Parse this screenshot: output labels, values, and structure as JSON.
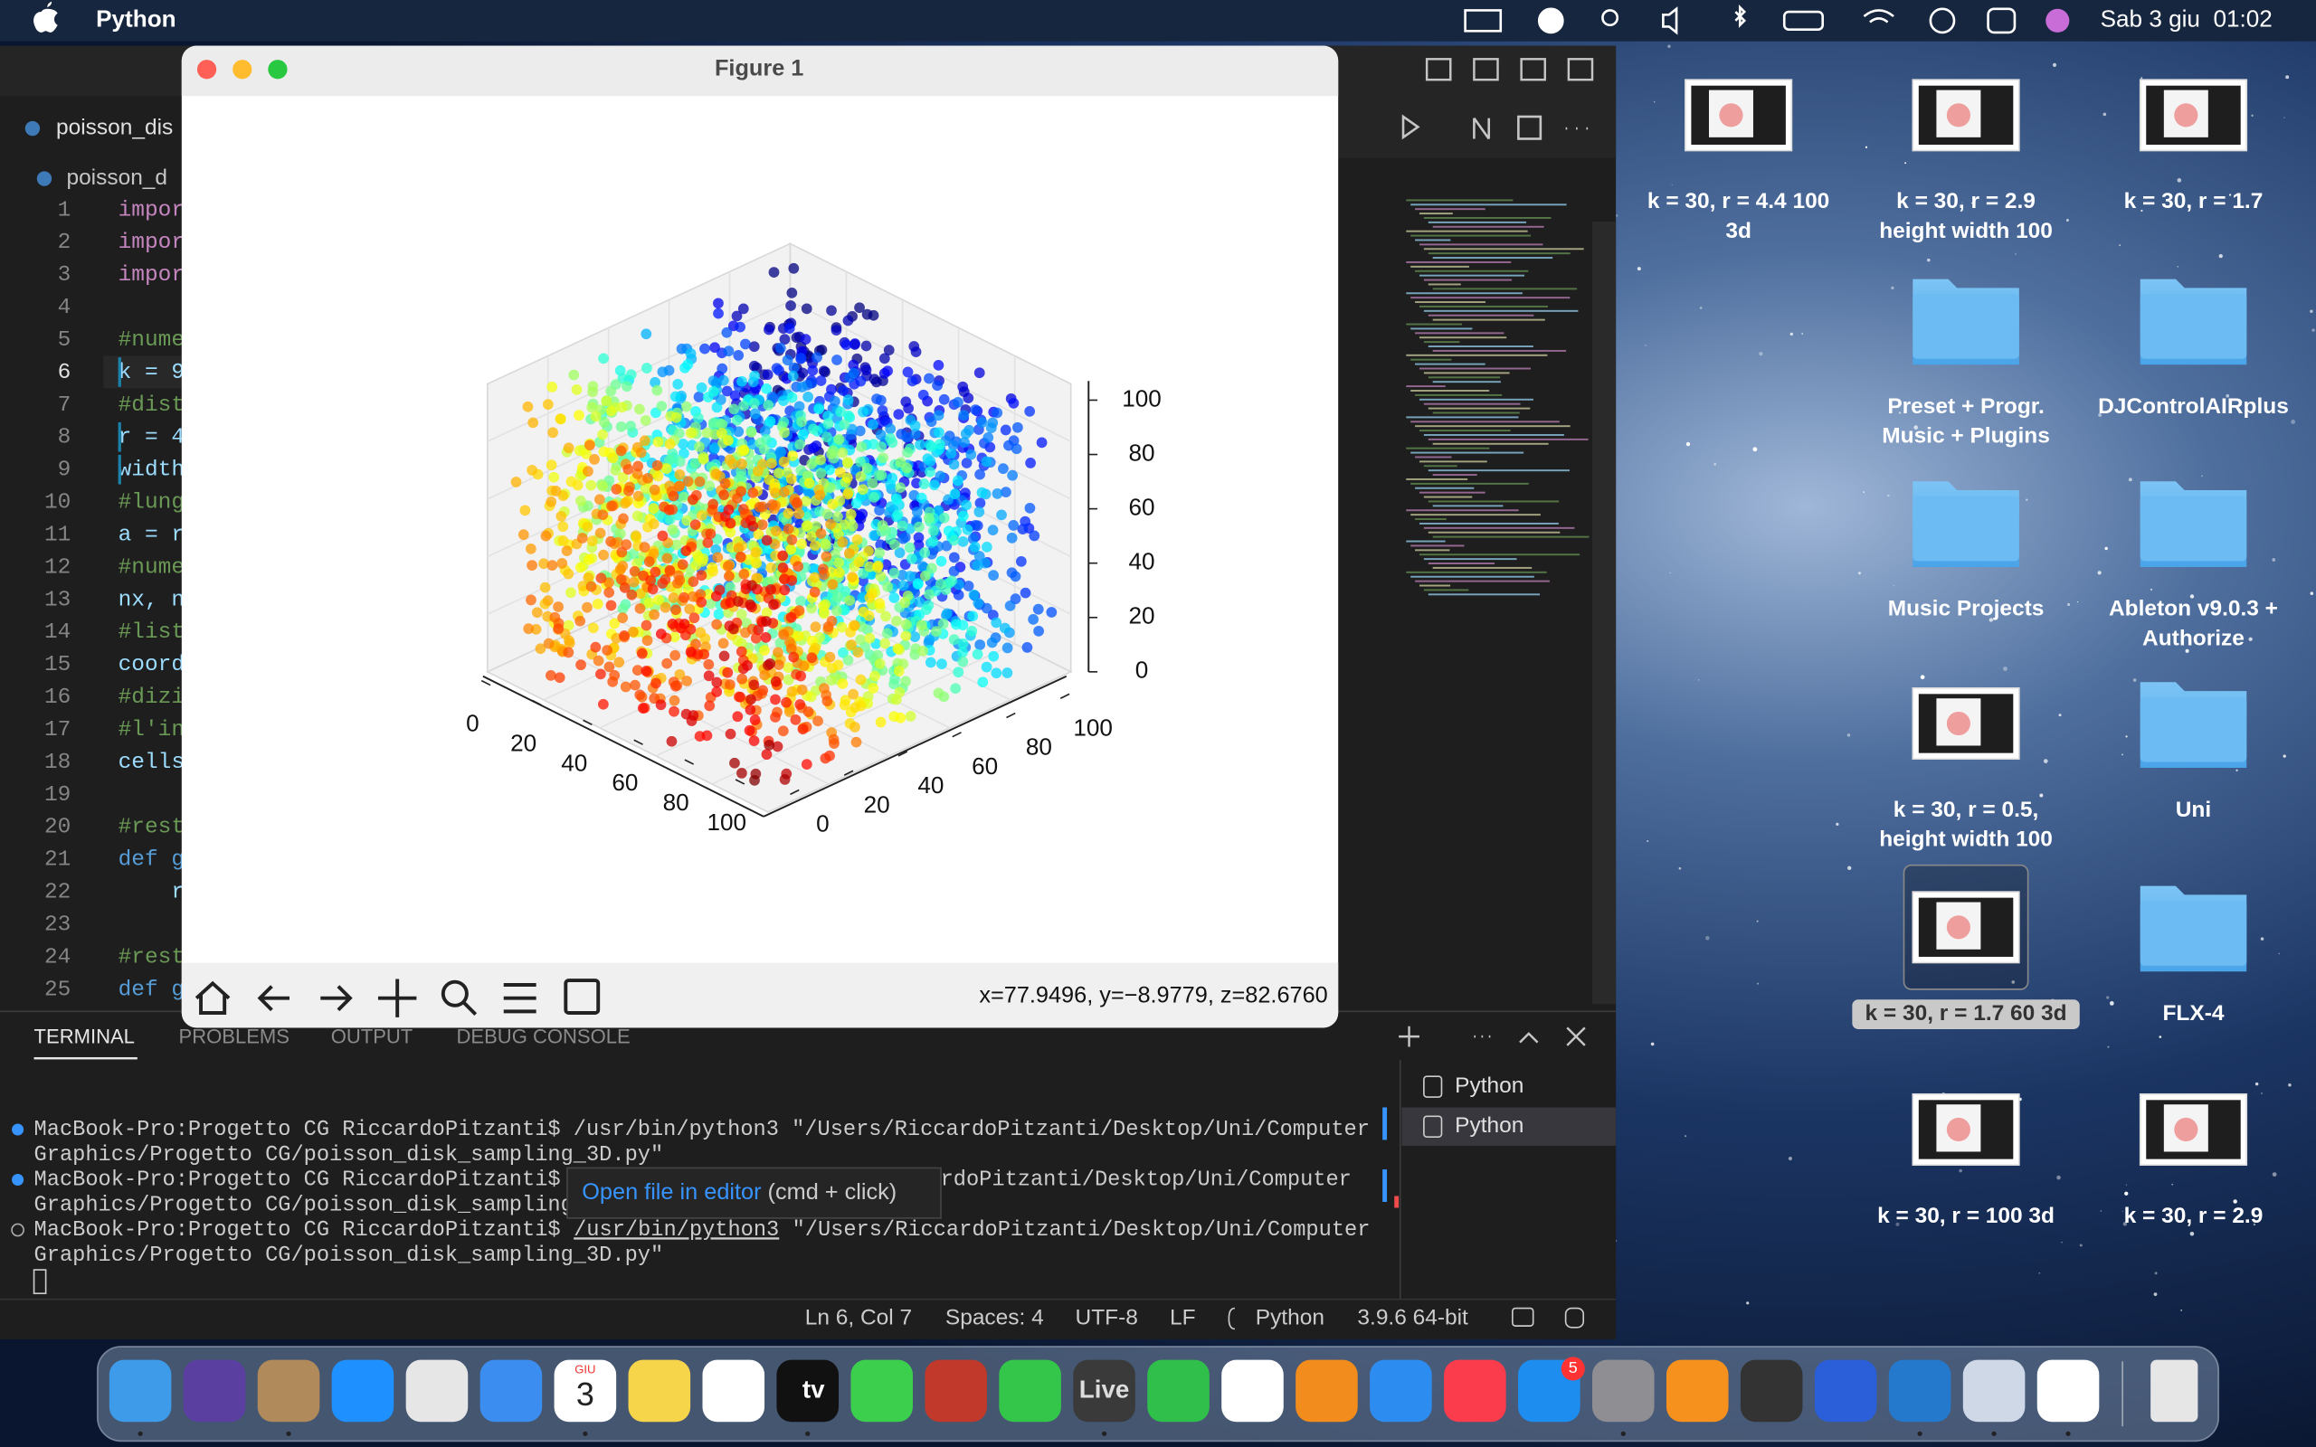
{
  "menubar": {
    "app": "Python",
    "datetime": "Sab 3 giu  01:02"
  },
  "editor": {
    "tab": "poisson_dis",
    "breadcrumb": "poisson_d",
    "lines": [
      {
        "number": 1,
        "code": "impor"
      },
      {
        "number": 2,
        "code": "impor"
      },
      {
        "number": 3,
        "code": "impor"
      },
      {
        "number": 4
      },
      {
        "number": 5,
        "code": "#nume"
      },
      {
        "number": 6,
        "code": "k = 9",
        "active": true
      },
      {
        "number": 7,
        "code": "#dist"
      },
      {
        "number": 8,
        "code": "r = 4"
      },
      {
        "number": 9,
        "code": "width"
      },
      {
        "number": 10,
        "code": "#lung"
      },
      {
        "number": 11,
        "code": "a = r"
      },
      {
        "number": 12,
        "code": "#nume"
      },
      {
        "number": 13,
        "code": "nx, n"
      },
      {
        "number": 14,
        "code": "#list"
      },
      {
        "number": 15,
        "code": "coord"
      },
      {
        "number": 16,
        "code": "#dizi"
      },
      {
        "number": 17,
        "code": "#l'in"
      },
      {
        "number": 18,
        "code": "cells"
      },
      {
        "number": 19
      },
      {
        "number": 20,
        "code": "#rest"
      },
      {
        "number": 21,
        "code": "def g"
      },
      {
        "number": 22,
        "code": "r"
      },
      {
        "number": 23
      },
      {
        "number": 24,
        "code": "#rest"
      },
      {
        "number": 25,
        "code": "def g"
      }
    ]
  },
  "figure": {
    "title": "Figure 1",
    "coordinates": "x=77.9496, y=−8.9779, z=82.6760",
    "x_ticks": [
      0,
      20,
      40,
      60,
      80,
      100
    ],
    "y_ticks": [
      0,
      20,
      40,
      60,
      80,
      100
    ],
    "z_ticks": [
      0,
      20,
      40,
      60,
      80,
      100
    ]
  },
  "terminal": {
    "tabs": [
      "TERMINAL",
      "PROBLEMS",
      "OUTPUT",
      "DEBUG CONSOLE"
    ],
    "lines": [
      {
        "status": "done",
        "text": "MacBook-Pro:Progetto CG RiccardoPitzanti$ /usr/bin/python3 \"/Users/RiccardoPitzanti/Desktop/Uni/Computer"
      },
      {
        "text": "Graphics/Progetto CG/poisson_disk_sampling_3D.py\""
      },
      {
        "status": "done",
        "prompt": "MacBook-Pro:Progetto CG RiccardoPitzanti$",
        "tail": "rdoPitzanti/Desktop/Uni/Computer"
      },
      {
        "text": "Graphics/Progetto CG/poisson_disk_sampling"
      },
      {
        "status": "running",
        "prompt": "MacBook-Pro:Progetto CG RiccardoPitzanti$",
        "link": "/usr/bin/python3",
        "rest": "\"/Users/RiccardoPitzanti/Desktop/Uni/Computer"
      },
      {
        "text": "Graphics/Progetto CG/poisson_disk_sampling_3D.py\""
      }
    ],
    "tooltip": {
      "action": "Open file in editor",
      "hint": "(cmd + click)"
    },
    "sessions": [
      "Python",
      "Python"
    ]
  },
  "status_bar": [
    "Ln 6, Col 7",
    "Spaces: 4",
    "UTF-8",
    "LF",
    "Python",
    "3.9.6 64-bit"
  ],
  "desktop_icons": [
    {
      "label": [
        "k = 30, r = 4.4 100",
        "3d"
      ],
      "kind": "screenshot"
    },
    {
      "label": [
        "k = 30, r = 2.9",
        "height width 100"
      ],
      "kind": "screenshot"
    },
    {
      "label": [
        "k = 30, r = 1.7"
      ],
      "kind": "screenshot"
    },
    {
      "label": [
        "Preset + Progr.",
        "Music + Plugins"
      ],
      "kind": "folder"
    },
    {
      "label": [
        "DJControlAIRplus"
      ],
      "kind": "folder"
    },
    {
      "label": [
        "Music Projects"
      ],
      "kind": "folder"
    },
    {
      "label": [
        "Ableton v9.0.3 +",
        "Authorize"
      ],
      "kind": "folder"
    },
    {
      "label": [
        "k = 30, r = 0.5,",
        "height width 100"
      ],
      "kind": "screenshot"
    },
    {
      "label": [
        "Uni"
      ],
      "kind": "folder"
    },
    {
      "label": [
        "k = 30, r = 1.7 60 3d"
      ],
      "kind": "screenshot",
      "selected": true
    },
    {
      "label": [
        "FLX-4"
      ],
      "kind": "folder"
    },
    {
      "label": [
        "k = 30, r = 100 3d"
      ],
      "kind": "screenshot"
    },
    {
      "label": [
        "k = 30, r = 2.9"
      ],
      "kind": "screenshot"
    }
  ],
  "dock": {
    "calendar_month": "GIU",
    "calendar_day": "3",
    "tv": "tv",
    "live": "Live",
    "badge": "5"
  }
}
